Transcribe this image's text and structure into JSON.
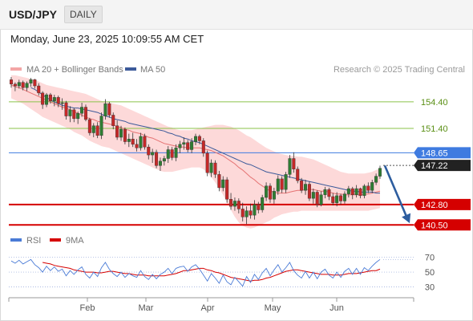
{
  "header": {
    "symbol": "USD/JPY",
    "period": "DAILY",
    "datetime": "Monday, June 23, 2025 10:09:55 AM CET"
  },
  "legend": {
    "ma20_bb": "MA 20 + Bollinger Bands",
    "ma50": "MA 50",
    "credit": "Research © 2025 Trading Central",
    "rsi": "RSI",
    "rsi_ma": "9MA"
  },
  "colors": {
    "candle_up": "#2e7d32",
    "candle_down": "#c62828",
    "bollinger_fill": "#fdd5d5",
    "ma20": "#e57373",
    "ma50": "#3c5a9a",
    "support": "#d50000",
    "resistance": "#8bc34a",
    "pivot": "#3f7be0",
    "arrow": "#2d5d9f"
  },
  "chart_data": [
    {
      "type": "candlestick",
      "x": [
        "Feb",
        "Mar",
        "Apr",
        "May",
        "Jun"
      ],
      "ylim": [
        139.8,
        157.2
      ],
      "ohlc": [
        [
          156.9,
          157.2,
          156.0,
          156.4
        ],
        [
          156.4,
          156.6,
          155.6,
          156.2
        ],
        [
          156.2,
          156.9,
          155.9,
          156.6
        ],
        [
          156.6,
          156.8,
          155.7,
          156.0
        ],
        [
          156.0,
          156.7,
          155.6,
          156.5
        ],
        [
          156.5,
          157.1,
          156.1,
          156.9
        ],
        [
          156.9,
          157.0,
          155.9,
          156.2
        ],
        [
          156.2,
          156.5,
          155.1,
          155.4
        ],
        [
          155.4,
          155.6,
          153.6,
          154.1
        ],
        [
          154.1,
          155.4,
          153.8,
          155.2
        ],
        [
          155.2,
          155.4,
          154.2,
          154.5
        ],
        [
          154.5,
          155.2,
          153.9,
          154.9
        ],
        [
          154.9,
          155.1,
          153.8,
          154.2
        ],
        [
          154.2,
          154.8,
          153.5,
          154.3
        ],
        [
          154.3,
          154.5,
          152.4,
          152.8
        ],
        [
          152.8,
          153.9,
          152.1,
          153.5
        ],
        [
          153.5,
          153.7,
          152.1,
          152.5
        ],
        [
          152.5,
          153.3,
          151.9,
          153.1
        ],
        [
          153.1,
          154.3,
          152.7,
          153.8
        ],
        [
          153.8,
          154.1,
          152.2,
          152.4
        ],
        [
          152.4,
          152.6,
          150.6,
          150.9
        ],
        [
          150.9,
          152.0,
          150.4,
          151.7
        ],
        [
          151.7,
          152.1,
          150.3,
          150.6
        ],
        [
          150.6,
          153.2,
          150.2,
          152.8
        ],
        [
          152.8,
          154.7,
          152.4,
          154.2
        ],
        [
          154.2,
          154.4,
          152.6,
          152.9
        ],
        [
          152.9,
          153.2,
          151.3,
          151.7
        ],
        [
          151.7,
          152.3,
          150.1,
          150.4
        ],
        [
          150.4,
          151.7,
          150.0,
          151.3
        ],
        [
          151.3,
          151.5,
          149.6,
          149.9
        ],
        [
          149.9,
          150.8,
          149.3,
          150.2
        ],
        [
          150.2,
          150.9,
          149.3,
          149.6
        ],
        [
          149.6,
          150.2,
          148.8,
          149.2
        ],
        [
          149.2,
          150.9,
          148.9,
          150.5
        ],
        [
          150.5,
          150.8,
          149.0,
          149.3
        ],
        [
          149.3,
          149.6,
          147.9,
          148.4
        ],
        [
          148.4,
          149.1,
          147.5,
          148.7
        ],
        [
          148.7,
          149.0,
          146.9,
          147.2
        ],
        [
          147.2,
          148.1,
          146.6,
          147.7
        ],
        [
          147.7,
          148.3,
          147.2,
          148.0
        ],
        [
          148.0,
          149.4,
          147.5,
          149.0
        ],
        [
          149.0,
          149.3,
          147.8,
          148.1
        ],
        [
          148.1,
          149.6,
          147.7,
          149.2
        ],
        [
          149.2,
          150.0,
          148.6,
          149.6
        ],
        [
          149.6,
          150.4,
          149.0,
          149.8
        ],
        [
          149.8,
          150.1,
          148.7,
          149.0
        ],
        [
          149.0,
          150.3,
          148.6,
          149.9
        ],
        [
          149.9,
          150.8,
          149.5,
          150.5
        ],
        [
          150.5,
          150.7,
          149.6,
          150.0
        ],
        [
          150.0,
          150.3,
          148.2,
          148.6
        ],
        [
          148.6,
          148.9,
          146.0,
          146.4
        ],
        [
          146.4,
          147.9,
          145.9,
          147.5
        ],
        [
          147.5,
          147.8,
          145.8,
          146.2
        ],
        [
          146.2,
          146.6,
          144.3,
          144.7
        ],
        [
          144.7,
          146.0,
          144.3,
          145.6
        ],
        [
          145.6,
          145.9,
          143.0,
          143.4
        ],
        [
          143.4,
          144.1,
          142.2,
          142.6
        ],
        [
          142.6,
          143.6,
          142.1,
          143.2
        ],
        [
          143.2,
          143.5,
          141.8,
          142.3
        ],
        [
          142.3,
          143.0,
          140.9,
          141.4
        ],
        [
          141.4,
          142.6,
          140.6,
          142.1
        ],
        [
          142.1,
          142.9,
          141.2,
          141.6
        ],
        [
          141.6,
          143.3,
          141.1,
          142.8
        ],
        [
          142.8,
          143.1,
          141.8,
          142.2
        ],
        [
          142.2,
          143.9,
          141.9,
          143.6
        ],
        [
          143.6,
          145.3,
          143.2,
          144.9
        ],
        [
          144.9,
          145.2,
          143.0,
          143.4
        ],
        [
          143.4,
          144.7,
          142.9,
          144.3
        ],
        [
          144.3,
          146.1,
          143.9,
          145.7
        ],
        [
          145.7,
          146.0,
          144.1,
          144.5
        ],
        [
          144.5,
          146.5,
          144.1,
          146.2
        ],
        [
          146.2,
          148.4,
          145.8,
          148.0
        ],
        [
          148.0,
          148.7,
          146.4,
          146.8
        ],
        [
          146.8,
          147.1,
          145.2,
          145.5
        ],
        [
          145.5,
          145.8,
          144.1,
          144.4
        ],
        [
          144.4,
          145.6,
          143.9,
          145.1
        ],
        [
          145.1,
          145.4,
          143.2,
          143.5
        ],
        [
          143.5,
          144.6,
          142.9,
          144.2
        ],
        [
          144.2,
          144.4,
          142.5,
          142.8
        ],
        [
          142.8,
          144.3,
          142.6,
          143.9
        ],
        [
          143.9,
          144.8,
          143.5,
          144.5
        ],
        [
          144.5,
          144.7,
          143.3,
          143.7
        ],
        [
          143.7,
          144.1,
          142.7,
          143.0
        ],
        [
          143.0,
          144.2,
          142.6,
          143.8
        ],
        [
          143.8,
          144.0,
          142.8,
          143.2
        ],
        [
          143.2,
          144.3,
          142.9,
          144.0
        ],
        [
          144.0,
          144.9,
          143.6,
          144.6
        ],
        [
          144.6,
          144.8,
          143.4,
          143.9
        ],
        [
          143.9,
          145.0,
          143.6,
          144.6
        ],
        [
          144.6,
          144.7,
          143.5,
          143.8
        ],
        [
          143.8,
          145.1,
          143.5,
          144.9
        ],
        [
          144.9,
          145.3,
          144.1,
          144.4
        ],
        [
          144.4,
          145.6,
          144.1,
          145.3
        ],
        [
          145.3,
          146.3,
          145.0,
          146.0
        ],
        [
          146.0,
          147.2,
          145.7,
          146.9
        ]
      ],
      "ma20": [
        156.3,
        156.1,
        156.0,
        155.8,
        155.6,
        155.4,
        155.2,
        155.0,
        154.8,
        154.6,
        154.4,
        154.2,
        154.0,
        153.8,
        153.7,
        153.5,
        153.3,
        153.1,
        152.9,
        152.7,
        152.5,
        152.4,
        152.2,
        152.1,
        152.0,
        151.9,
        151.8,
        151.6,
        151.5,
        151.3,
        151.2,
        151.0,
        150.9,
        150.8,
        150.6,
        150.4,
        150.3,
        150.1,
        149.9,
        149.7,
        149.6,
        149.5,
        149.4,
        149.3,
        149.3,
        149.2,
        149.2,
        149.2,
        149.2,
        149.1,
        149.0,
        148.9,
        148.7,
        148.5,
        148.3,
        148.0,
        147.7,
        147.4,
        147.0,
        146.7,
        146.3,
        145.9,
        145.6,
        145.2,
        144.9,
        144.6,
        144.3,
        144.2,
        144.1,
        144.1,
        144.1,
        144.2,
        144.3,
        144.4,
        144.4,
        144.5,
        144.5,
        144.5,
        144.4,
        144.3,
        144.3,
        144.2,
        144.1,
        144.0,
        144.0,
        143.9,
        143.9,
        143.9,
        143.9,
        143.9,
        144.0,
        144.0,
        144.1,
        144.2,
        144.3
      ],
      "bb_upper": [
        157.4,
        157.4,
        157.3,
        157.2,
        157.1,
        157.0,
        156.9,
        156.7,
        156.5,
        156.3,
        156.2,
        156.1,
        156.0,
        155.9,
        155.8,
        155.7,
        155.6,
        155.5,
        155.4,
        155.3,
        155.1,
        154.9,
        154.7,
        154.5,
        154.4,
        154.3,
        154.2,
        154.1,
        154.0,
        153.8,
        153.6,
        153.4,
        153.2,
        153.0,
        152.8,
        152.6,
        152.4,
        152.2,
        152.0,
        151.8,
        151.6,
        151.5,
        151.3,
        151.2,
        151.2,
        151.2,
        151.2,
        151.3,
        151.4,
        151.5,
        151.6,
        151.7,
        151.8,
        151.8,
        151.8,
        151.7,
        151.6,
        151.4,
        151.2,
        150.9,
        150.6,
        150.4,
        150.1,
        149.8,
        149.5,
        149.2,
        149.0,
        148.8,
        148.6,
        148.5,
        148.4,
        148.3,
        148.3,
        148.2,
        148.2,
        148.1,
        148.0,
        147.9,
        147.7,
        147.5,
        147.3,
        147.1,
        146.9,
        146.7,
        146.5,
        146.4,
        146.3,
        146.3,
        146.3,
        146.3,
        146.3,
        146.4,
        146.5,
        146.7,
        146.9
      ],
      "bb_lower": [
        154.8,
        154.6,
        154.4,
        154.2,
        153.9,
        153.6,
        153.3,
        153.0,
        152.7,
        152.5,
        152.3,
        152.1,
        151.9,
        151.7,
        151.5,
        151.3,
        151.0,
        150.8,
        150.6,
        150.3,
        150.0,
        149.8,
        149.6,
        149.4,
        149.3,
        149.2,
        149.0,
        148.8,
        148.6,
        148.4,
        148.2,
        148.0,
        147.8,
        147.6,
        147.4,
        147.2,
        147.0,
        146.8,
        146.6,
        146.5,
        146.5,
        146.5,
        146.6,
        146.7,
        146.8,
        146.9,
        147.0,
        147.0,
        147.0,
        146.8,
        146.4,
        145.9,
        145.3,
        144.6,
        143.9,
        143.0,
        142.2,
        141.4,
        140.8,
        140.4,
        140.2,
        140.1,
        140.2,
        140.4,
        140.6,
        140.8,
        141.0,
        141.3,
        141.5,
        141.7,
        141.8,
        141.9,
        142.0,
        142.0,
        142.1,
        142.1,
        142.1,
        142.1,
        142.1,
        142.1,
        142.1,
        142.1,
        142.1,
        142.1,
        142.1,
        142.1,
        142.1,
        142.1,
        142.1,
        142.1,
        142.1,
        142.1,
        142.2,
        142.3,
        142.4
      ],
      "ma50": [
        null,
        null,
        null,
        null,
        null,
        156.0,
        155.8,
        155.5,
        155.2,
        154.9,
        154.6,
        154.4,
        154.2,
        154.0,
        153.9,
        153.8,
        153.7,
        153.7,
        153.6,
        153.5,
        153.4,
        153.3,
        153.2,
        153.0,
        152.8,
        152.7,
        152.5,
        152.4,
        152.3,
        152.2,
        152.0,
        151.9,
        151.8,
        151.7,
        151.6,
        151.5,
        151.4,
        151.3,
        151.2,
        151.1,
        150.9,
        150.8,
        150.6,
        150.5,
        150.3,
        150.2,
        150.0,
        149.9,
        149.8,
        149.6,
        149.4,
        149.2,
        149.0,
        148.8,
        148.6,
        148.4,
        148.2,
        148.0,
        147.8,
        147.6,
        147.4,
        147.3,
        147.1,
        146.9,
        146.7,
        146.5,
        146.4,
        146.3,
        146.2,
        146.1,
        146.0,
        145.9,
        145.8,
        145.7,
        145.6,
        145.5,
        145.4,
        145.3,
        145.2,
        145.1,
        145.0,
        144.9,
        144.8,
        144.7,
        144.6,
        144.5,
        144.4,
        144.3,
        144.3,
        144.2,
        144.2,
        144.2,
        144.2,
        144.1,
        144.1
      ],
      "levels": [
        {
          "value": 154.4,
          "label": "154.40",
          "kind": "resistance"
        },
        {
          "value": 151.4,
          "label": "151.40",
          "kind": "resistance"
        },
        {
          "value": 148.65,
          "label": "148.65",
          "kind": "pivot"
        },
        {
          "value": 147.22,
          "label": "147.22",
          "kind": "last"
        },
        {
          "value": 142.8,
          "label": "142.80",
          "kind": "support"
        },
        {
          "value": 140.5,
          "label": "140.50",
          "kind": "support"
        }
      ],
      "arrow": {
        "from": 147.2,
        "to": 140.7
      }
    },
    {
      "type": "line",
      "title": "RSI",
      "ylim": [
        22,
        76
      ],
      "yticks": [
        70,
        50,
        30
      ],
      "series": [
        {
          "name": "RSI",
          "values": [
            65,
            62,
            66,
            61,
            64,
            67,
            60,
            56,
            50,
            58,
            52,
            57,
            51,
            54,
            45,
            52,
            47,
            53,
            57,
            47,
            42,
            50,
            44,
            56,
            63,
            54,
            48,
            44,
            50,
            43,
            48,
            45,
            43,
            52,
            44,
            40,
            47,
            41,
            47,
            50,
            55,
            48,
            55,
            57,
            58,
            51,
            57,
            60,
            54,
            46,
            38,
            48,
            42,
            35,
            46,
            37,
            33,
            43,
            37,
            31,
            44,
            36,
            47,
            40,
            49,
            55,
            45,
            53,
            60,
            50,
            56,
            63,
            52,
            46,
            42,
            51,
            42,
            50,
            41,
            50,
            54,
            46,
            42,
            50,
            43,
            51,
            55,
            47,
            55,
            47,
            56,
            52,
            58,
            63,
            67
          ]
        },
        {
          "name": "9MA",
          "values": [
            null,
            null,
            null,
            null,
            null,
            null,
            null,
            null,
            63,
            62,
            61,
            59,
            58,
            57,
            56,
            55,
            53,
            52,
            51,
            50,
            50,
            50,
            49,
            49,
            50,
            51,
            51,
            50,
            49,
            48,
            48,
            47,
            46,
            46,
            46,
            45,
            45,
            45,
            45,
            45,
            46,
            47,
            48,
            50,
            52,
            52,
            53,
            54,
            55,
            55,
            53,
            52,
            50,
            49,
            47,
            45,
            43,
            42,
            41,
            40,
            39,
            38,
            39,
            39,
            40,
            42,
            43,
            45,
            47,
            49,
            51,
            52,
            53,
            53,
            52,
            51,
            50,
            49,
            48,
            47,
            47,
            47,
            46,
            46,
            46,
            47,
            48,
            48,
            48,
            49,
            50,
            51,
            52,
            52,
            54
          ]
        }
      ]
    }
  ]
}
